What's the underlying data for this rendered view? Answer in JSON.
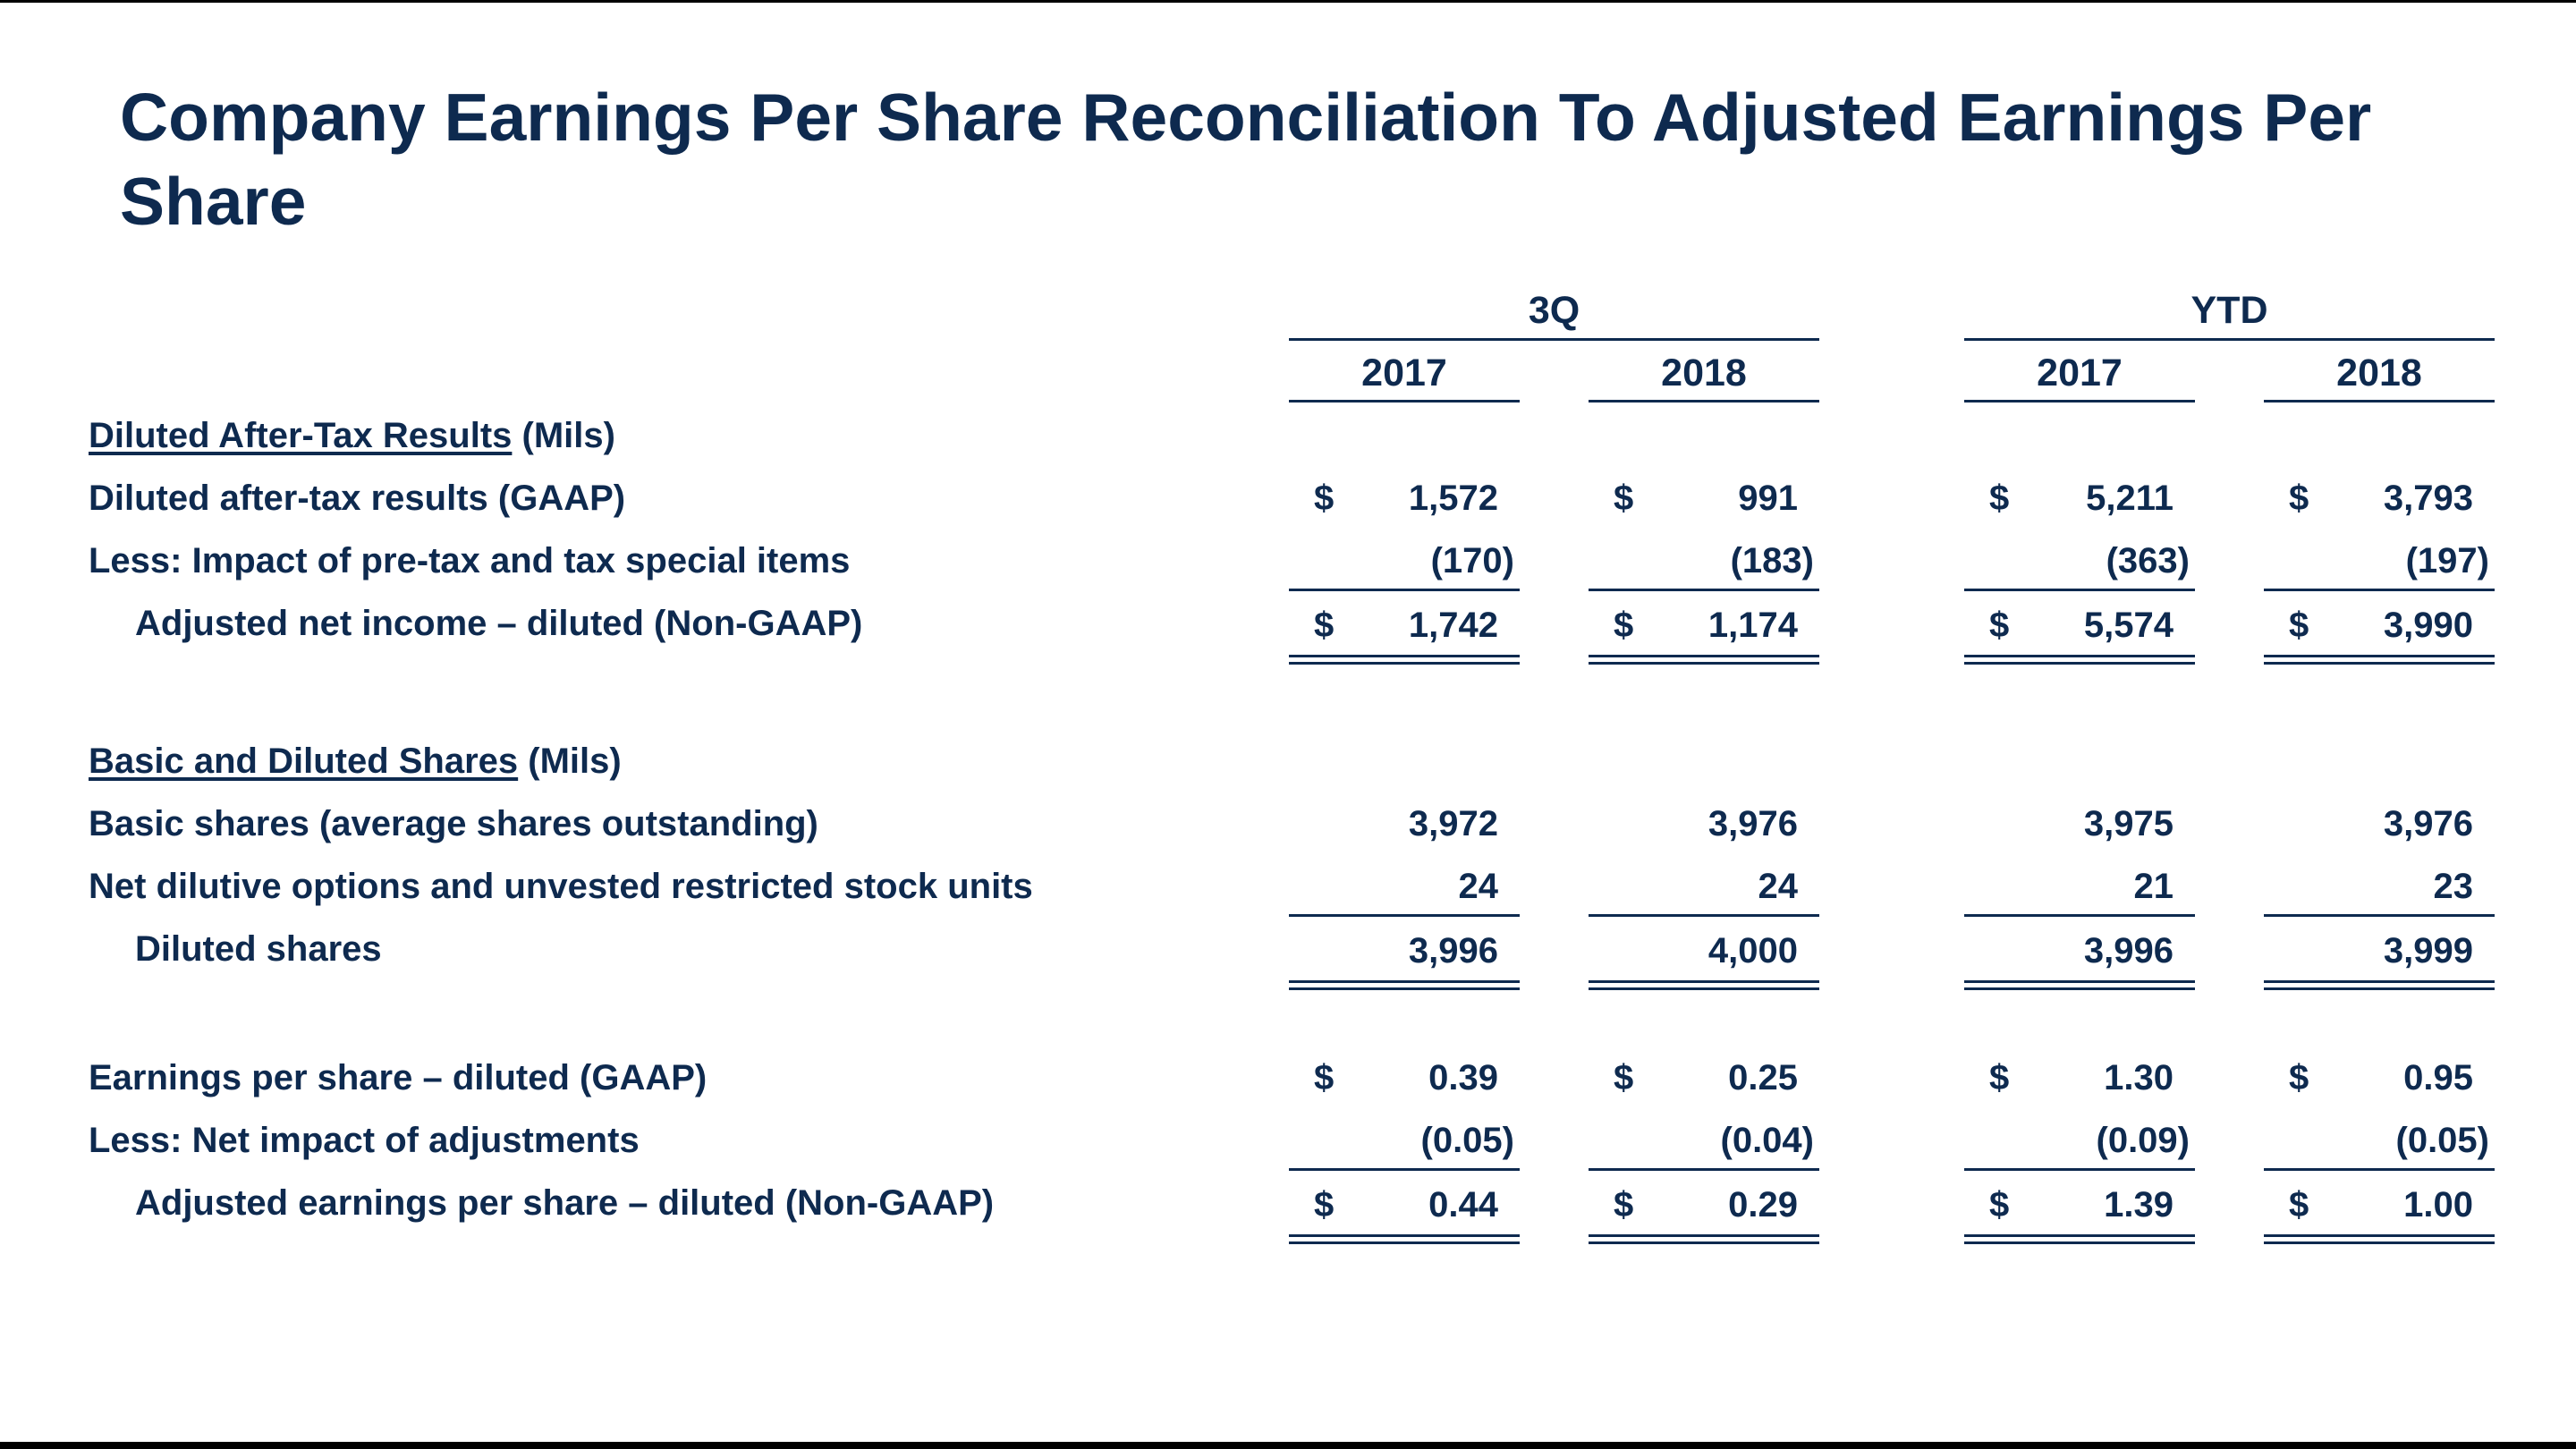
{
  "title": "Company Earnings Per Share Reconciliation To Adjusted Earnings Per Share",
  "headers": {
    "group_3q": "3Q",
    "group_ytd": "YTD",
    "years": [
      "2017",
      "2018",
      "2017",
      "2018"
    ]
  },
  "section1": {
    "heading": "Diluted After-Tax Results",
    "unit": "(Mils)",
    "rows": [
      {
        "label": "Diluted after-tax results (GAAP)",
        "dollar": "$",
        "values": [
          "1,572",
          "991",
          "5,211",
          "3,793"
        ]
      },
      {
        "label": "Less:  Impact of pre-tax and tax special items",
        "dollar": "",
        "values": [
          "(170)",
          "(183)",
          "(363)",
          "(197)"
        ]
      },
      {
        "label": "Adjusted net income – diluted (Non-GAAP)",
        "dollar": "$",
        "values": [
          "1,742",
          "1,174",
          "5,574",
          "3,990"
        ]
      }
    ]
  },
  "section2": {
    "heading": "Basic and Diluted Shares",
    "unit": "(Mils)",
    "rows": [
      {
        "label": "Basic shares (average shares outstanding)",
        "dollar": "",
        "values": [
          "3,972",
          "3,976",
          "3,975",
          "3,976"
        ]
      },
      {
        "label": "Net dilutive options and unvested restricted stock units",
        "dollar": "",
        "values": [
          "24",
          "24",
          "21",
          "23"
        ]
      },
      {
        "label": "Diluted shares",
        "dollar": "",
        "values": [
          "3,996",
          "4,000",
          "3,996",
          "3,999"
        ]
      }
    ]
  },
  "section3": {
    "rows": [
      {
        "label": "Earnings per share – diluted (GAAP)",
        "dollar": "$",
        "values": [
          "0.39",
          "0.25",
          "1.30",
          "0.95"
        ]
      },
      {
        "label": "Less:  Net impact of adjustments",
        "dollar": "",
        "values": [
          "(0.05)",
          "(0.04)",
          "(0.09)",
          "(0.05)"
        ]
      },
      {
        "label": "Adjusted earnings per share – diluted (Non-GAAP)",
        "dollar": "$",
        "values": [
          "0.44",
          "0.29",
          "1.39",
          "1.00"
        ]
      }
    ]
  }
}
